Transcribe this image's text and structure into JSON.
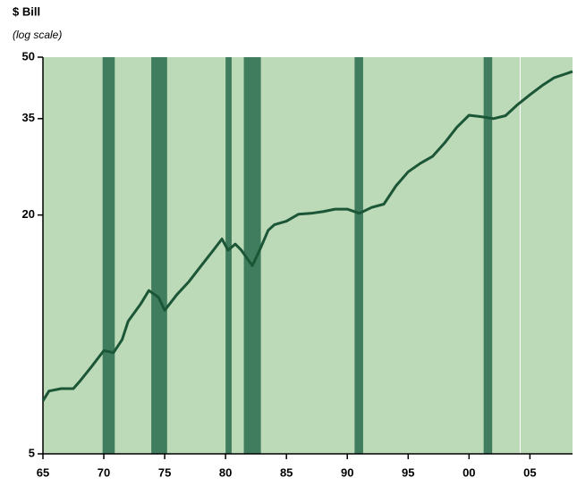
{
  "chart_data": {
    "type": "line",
    "title": "$ Bill",
    "subtitle": "(log scale)",
    "log_scale": true,
    "background": "#bcd9b8",
    "band_color": "#3f7d5e",
    "divider_color": "#ffffff",
    "recessions": [
      [
        1969.9,
        1970.9
      ],
      [
        1973.9,
        1975.2
      ],
      [
        1980.0,
        1980.5
      ],
      [
        1981.5,
        1982.9
      ],
      [
        1990.6,
        1991.3
      ],
      [
        2001.2,
        2001.9
      ]
    ],
    "divider_x": 2004.2,
    "x": [
      1965,
      1965.5,
      1966.5,
      1967.5,
      1968,
      1969,
      1970,
      1970.8,
      1971.5,
      1972,
      1973,
      1973.7,
      1974.5,
      1975,
      1976,
      1977,
      1978,
      1979,
      1979.7,
      1980.2,
      1980.8,
      1981.3,
      1981.8,
      1982.2,
      1982.8,
      1983.5,
      1984,
      1985,
      1986,
      1987,
      1988,
      1989,
      1990,
      1991,
      1992,
      1993,
      1994,
      1995,
      1996,
      1997,
      1998,
      1999,
      2000,
      2001,
      2002,
      2003,
      2004,
      2005,
      2006,
      2007,
      2008.5
    ],
    "series": [
      {
        "color": "#1b5636",
        "values": [
          6.8,
          7.2,
          7.3,
          7.3,
          7.6,
          8.3,
          9.1,
          9.0,
          9.7,
          10.8,
          11.9,
          12.9,
          12.4,
          11.5,
          12.6,
          13.6,
          14.9,
          16.3,
          17.4,
          16.3,
          16.9,
          16.3,
          15.5,
          14.9,
          16.3,
          18.3,
          18.9,
          19.3,
          20.1,
          20.2,
          20.4,
          20.7,
          20.7,
          20.2,
          20.9,
          21.3,
          23.7,
          25.7,
          27.0,
          28.1,
          30.4,
          33.3,
          35.7,
          35.4,
          35.0,
          35.6,
          38.0,
          40.2,
          42.4,
          44.4,
          46.0
        ]
      }
    ],
    "xlim": [
      1965,
      2008.5
    ],
    "xticks": [
      {
        "value": 1965,
        "label": "65"
      },
      {
        "value": 1970,
        "label": "70"
      },
      {
        "value": 1975,
        "label": "75"
      },
      {
        "value": 1980,
        "label": "80"
      },
      {
        "value": 1985,
        "label": "85"
      },
      {
        "value": 1990,
        "label": "90"
      },
      {
        "value": 1995,
        "label": "95"
      },
      {
        "value": 2000,
        "label": "00"
      },
      {
        "value": 2005,
        "label": "05"
      }
    ],
    "ylim": [
      5,
      50
    ],
    "yticks": [
      5,
      20,
      35,
      50
    ]
  }
}
